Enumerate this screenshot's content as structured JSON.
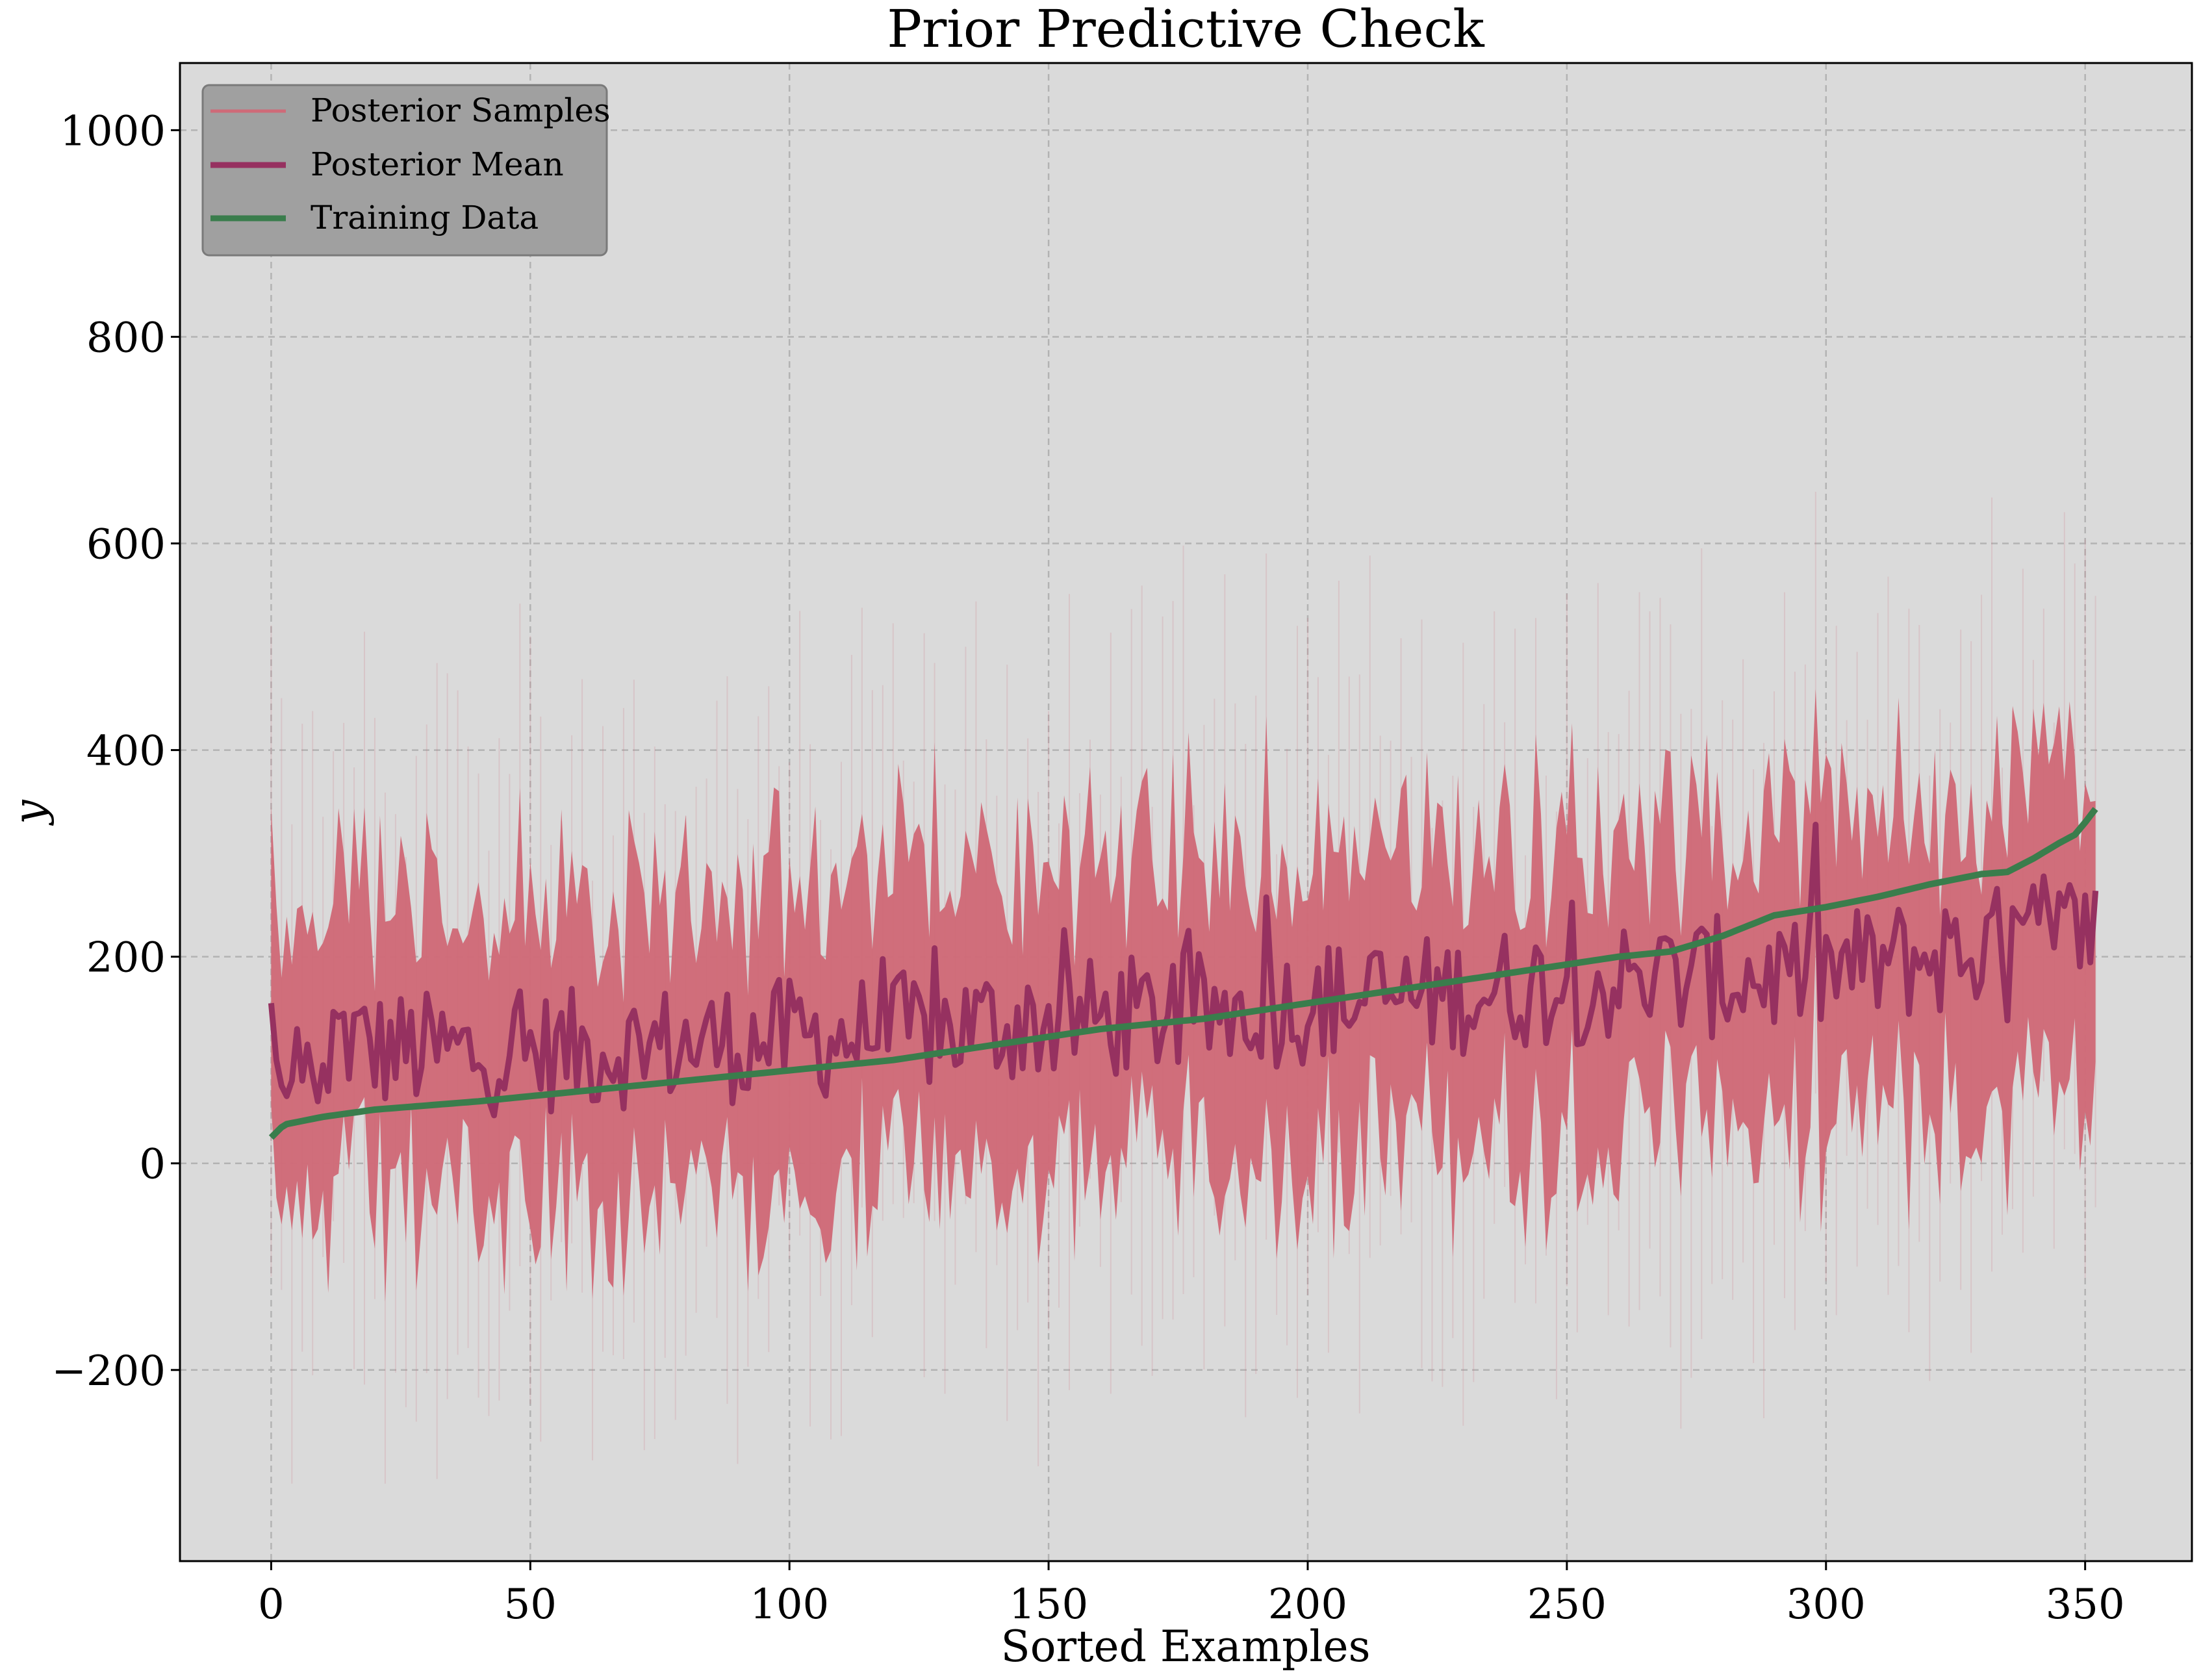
{
  "chart_data": {
    "type": "line",
    "title": "Prior Predictive Check",
    "xlabel": "Sorted Examples",
    "ylabel": "y",
    "xlim": [
      -17.6,
      370.6
    ],
    "ylim": [
      -385,
      1065
    ],
    "xticks": [
      0,
      50,
      100,
      150,
      200,
      250,
      300,
      350
    ],
    "yticks": [
      -200,
      0,
      200,
      400,
      600,
      800,
      1000
    ],
    "xtick_labels": [
      "0",
      "50",
      "100",
      "150",
      "200",
      "250",
      "300",
      "350"
    ],
    "ytick_labels": [
      "−200",
      "0",
      "200",
      "400",
      "600",
      "800",
      "1000"
    ],
    "grid": true,
    "background": "#dadada",
    "legend_position": "upper-left",
    "n_points": 353,
    "series": [
      {
        "name": "Posterior Samples",
        "kind": "band",
        "color": "#cf6a78",
        "x": [
          0,
          352
        ],
        "center": [
          115,
          200
        ],
        "typical_halfwidth": 140,
        "extreme_range": [
          -310,
          650
        ]
      },
      {
        "name": "Posterior Mean",
        "kind": "line",
        "color": "#963160",
        "x": [
          0,
          20,
          40,
          60,
          80,
          100,
          120,
          140,
          160,
          180,
          200,
          220,
          240,
          260,
          280,
          300,
          320,
          340,
          352
        ],
        "y": [
          155,
          110,
          105,
          110,
          115,
          120,
          125,
          135,
          140,
          145,
          155,
          160,
          170,
          175,
          180,
          185,
          200,
          215,
          228
        ],
        "sample_ys": [
          155,
          100,
          75,
          65,
          80,
          130,
          80,
          115,
          85,
          60,
          95,
          70
        ]
      },
      {
        "name": "Training Data",
        "kind": "line",
        "color": "#3a7d4c",
        "x": [
          0,
          1,
          2,
          3,
          5,
          10,
          20,
          40,
          60,
          80,
          100,
          120,
          140,
          160,
          180,
          200,
          220,
          240,
          260,
          270,
          280,
          290,
          300,
          310,
          320,
          330,
          335,
          340,
          345,
          348,
          350,
          352
        ],
        "y": [
          25,
          30,
          35,
          38,
          40,
          45,
          52,
          60,
          70,
          80,
          90,
          100,
          115,
          130,
          140,
          155,
          170,
          185,
          200,
          205,
          220,
          240,
          248,
          258,
          270,
          280,
          282,
          295,
          310,
          318,
          330,
          343
        ]
      }
    ]
  }
}
